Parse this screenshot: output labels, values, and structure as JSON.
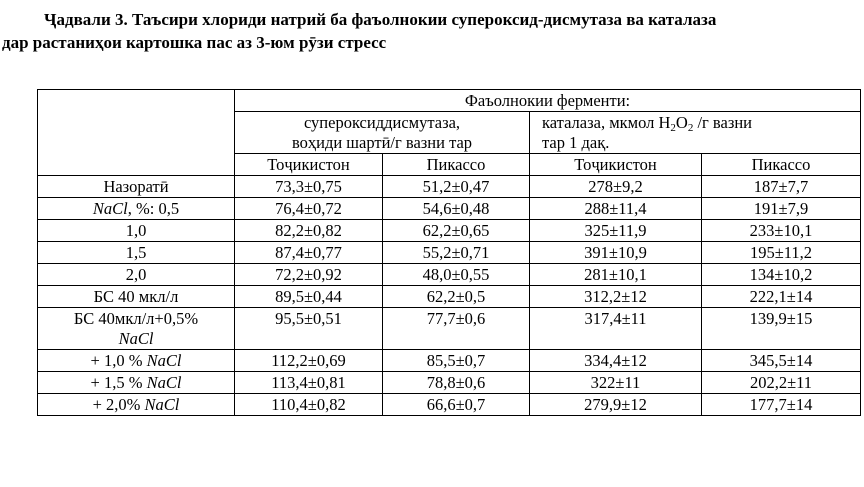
{
  "caption": {
    "line1": "Ҷадвали 3. Таъсири хлориди натрий ба фаъолнокии супероксид-дисмутаза ва каталаза",
    "line2": "дар растаниҳои картошка пас аз 3-юм рӯзи стресс"
  },
  "table": {
    "header_group": "Фаъолнокии ферменти:",
    "sod_header_1": "супероксиддисмутаза,",
    "sod_header_2": "воҳиди шартӣ/г вазни тар",
    "catalase_header_pre": "каталаза, мкмол H",
    "catalase_header_sub1": "2",
    "catalase_header_mid": "O",
    "catalase_header_sub2": "2",
    "catalase_header_post": " /г вазни",
    "catalase_header_line2": "тар 1 дақ.",
    "variety_1": "Тоҷикистон",
    "variety_2": "Пикассо",
    "variety_3": "Тоҷикистон",
    "variety_4": "Пикассо",
    "rows": [
      {
        "label": "Назоратӣ",
        "values": [
          "73,3±0,75",
          "51,2±0,47",
          "278±9,2",
          "187±7,7"
        ]
      },
      {
        "label_italic": "NaCl",
        "label_tail": ", %: 0,5",
        "values": [
          "76,4±0,72",
          "54,6±0,48",
          "288±11,4",
          "191±7,9"
        ]
      },
      {
        "label": "1,0",
        "values": [
          "82,2±0,82",
          "62,2±0,65",
          "325±11,9",
          "233±10,1"
        ]
      },
      {
        "label": "1,5",
        "values": [
          "87,4±0,77",
          "55,2±0,71",
          "391±10,9",
          "195±11,2"
        ]
      },
      {
        "label": "2,0",
        "values": [
          "72,2±0,92",
          "48,0±0,55",
          "281±10,1",
          "134±10,2"
        ]
      },
      {
        "label": "БС 40 мкл/л",
        "values": [
          "89,5±0,44",
          "62,2±0,5",
          "312,2±12",
          "222,1±14"
        ]
      },
      {
        "label": "БС 40мкл/л+0,5%",
        "label_line2_italic": "NaCl",
        "values": [
          "95,5±0,51",
          "77,7±0,6",
          "317,4±11",
          "139,9±15"
        ]
      },
      {
        "label_head": "+ 1,0 % ",
        "label_italic": "NaCl",
        "values": [
          "112,2±0,69",
          "85,5±0,7",
          "334,4±12",
          "345,5±14"
        ]
      },
      {
        "label_head": "+ 1,5 % ",
        "label_italic": "NaCl",
        "values": [
          "113,4±0,81",
          "78,8±0,6",
          "322±11",
          "202,2±11"
        ]
      },
      {
        "label_head": "+ 2,0% ",
        "label_italic": "NaCl",
        "values": [
          "110,4±0,82",
          "66,6±0,7",
          "279,9±12",
          "177,7±14"
        ]
      }
    ]
  }
}
